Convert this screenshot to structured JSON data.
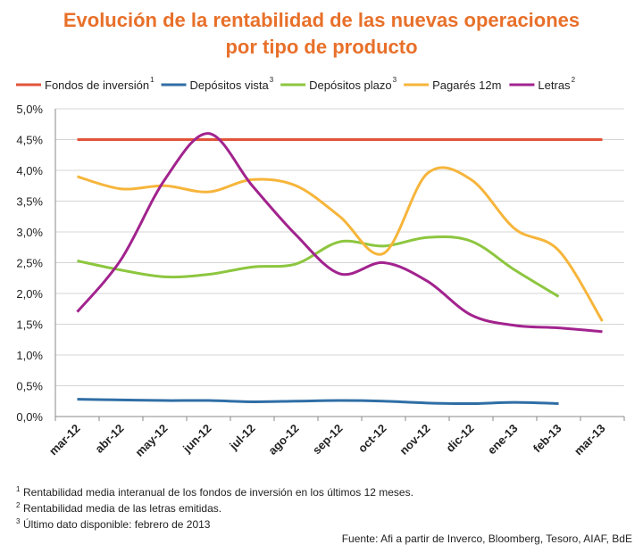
{
  "chart_data": {
    "type": "line",
    "title": [
      "Evolución de la rentabilidad de las nuevas operaciones",
      "por tipo de producto"
    ],
    "categories": [
      "mar-12",
      "abr-12",
      "may-12",
      "jun-12",
      "jul-12",
      "ago-12",
      "sep-12",
      "oct-12",
      "nov-12",
      "dic-12",
      "ene-13",
      "feb-13",
      "mar-13"
    ],
    "series": [
      {
        "name": "Fondos de inversión",
        "sup": "1",
        "color": "#e2553a",
        "values": [
          4.5,
          4.5,
          4.5,
          4.5,
          4.5,
          4.5,
          4.5,
          4.5,
          4.5,
          4.5,
          4.5,
          4.5,
          4.5
        ]
      },
      {
        "name": "Depósitos vista",
        "sup": "3",
        "color": "#2f6ea5",
        "values": [
          0.28,
          0.27,
          0.26,
          0.26,
          0.24,
          0.25,
          0.26,
          0.25,
          0.22,
          0.21,
          0.23,
          0.21,
          null
        ]
      },
      {
        "name": "Depósitos plazo",
        "sup": "3",
        "color": "#8dc63f",
        "values": [
          2.53,
          2.38,
          2.27,
          2.31,
          2.43,
          2.48,
          2.84,
          2.77,
          2.91,
          2.85,
          2.38,
          1.95,
          null
        ]
      },
      {
        "name": "Pagarés 12m",
        "color": "#f6b53b",
        "values": [
          3.9,
          3.7,
          3.75,
          3.65,
          3.85,
          3.75,
          3.25,
          2.65,
          3.95,
          3.85,
          3.05,
          2.7,
          1.55
        ]
      },
      {
        "name": "Letras",
        "sup": "2",
        "color": "#a2238e",
        "values": [
          1.7,
          2.55,
          3.85,
          4.6,
          3.75,
          2.95,
          2.32,
          2.5,
          2.2,
          1.65,
          1.48,
          1.44,
          1.38
        ]
      }
    ],
    "ylim": [
      0,
      5
    ],
    "yticks": [
      {
        "value": 0,
        "label": "0,0%"
      },
      {
        "value": 0.5,
        "label": "0,5%"
      },
      {
        "value": 1,
        "label": "1,0%"
      },
      {
        "value": 1.5,
        "label": "1,5%"
      },
      {
        "value": 2,
        "label": "2,0%"
      },
      {
        "value": 2.5,
        "label": "2,5%"
      },
      {
        "value": 3,
        "label": "3,0%"
      },
      {
        "value": 3.5,
        "label": "3,5%"
      },
      {
        "value": 4,
        "label": "4,0%"
      },
      {
        "value": 4.5,
        "label": "4,5%"
      },
      {
        "value": 5,
        "label": "5,0%"
      }
    ],
    "grid": true,
    "legend": "top",
    "footnotes": [
      {
        "marker": "1",
        "text": "Rentabilidad media interanual de los fondos de inversión en los últimos 12 meses."
      },
      {
        "marker": "2",
        "text": "Rentabilidad media de las letras emitidas."
      },
      {
        "marker": "3",
        "text": "Último dato disponible: febrero de 2013"
      }
    ],
    "source": "Fuente: Afi a partir de Inverco, Bloomberg, Tesoro, AIAF, BdE"
  }
}
